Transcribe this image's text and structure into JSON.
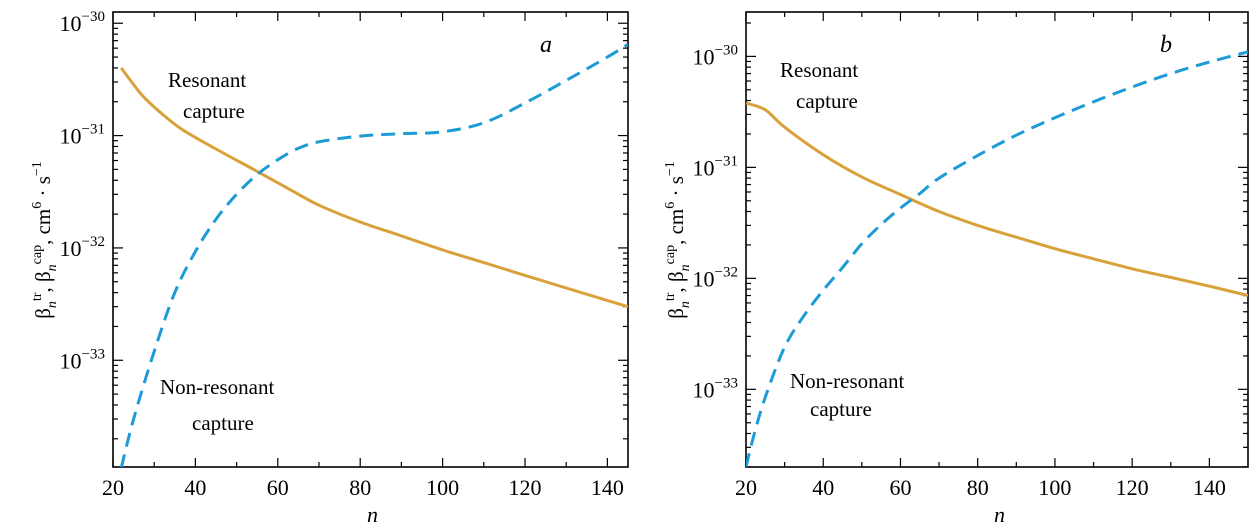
{
  "colors": {
    "resonant": "#D9A13A",
    "non_resonant": "#1C9BD6",
    "axes": "#000000"
  },
  "ylabel": {
    "beta": "β",
    "sup1": "tr",
    "sub": "n",
    "sup2": "cap",
    "unit_base": "cm",
    "unit_exp": "6",
    "unit_dot": "·",
    "unit_s": "s",
    "unit_s_exp": "−1"
  },
  "chart_data": [
    {
      "type": "line",
      "panel": "a",
      "xlabel": "n",
      "xlim": [
        20,
        145
      ],
      "ylim_log10": [
        -33.95,
        -29.9
      ],
      "yscale": "log",
      "x_ticks": [
        20,
        40,
        60,
        80,
        100,
        120,
        140
      ],
      "y_ticks": [
        {
          "base": "10",
          "exp": "−30",
          "log": -30
        },
        {
          "base": "10",
          "exp": "−31",
          "log": -31
        },
        {
          "base": "10",
          "exp": "−32",
          "log": -32
        },
        {
          "base": "10",
          "exp": "−33",
          "log": -33
        }
      ],
      "annotations": {
        "resonant": [
          "Resonant",
          "capture"
        ],
        "non_resonant": [
          "Non-resonant",
          "capture"
        ]
      },
      "series": [
        {
          "key": "resonant",
          "style": "solid",
          "x": [
            22,
            27,
            32,
            37,
            45,
            55,
            63,
            70,
            80,
            90,
            100,
            110,
            120,
            130,
            145
          ],
          "y": [
            4e-31,
            2.3e-31,
            1.55e-31,
            1.12e-31,
            7.6e-32,
            4.8e-32,
            3.3e-32,
            2.4e-32,
            1.7e-32,
            1.28e-32,
            9.6e-33,
            7.4e-33,
            5.7e-33,
            4.4e-33,
            3e-33
          ]
        },
        {
          "key": "non_resonant",
          "style": "dashed",
          "x": [
            22,
            25,
            30,
            35,
            40,
            45,
            50,
            55,
            60,
            65,
            70,
            80,
            90,
            100,
            110,
            120,
            130,
            140,
            145
          ],
          "y": [
            1.1e-34,
            3e-34,
            1.2e-33,
            4e-33,
            9.3e-33,
            1.8e-32,
            3e-32,
            4.5e-32,
            6.1e-32,
            7.7e-32,
            8.8e-32,
            9.9e-32,
            1.04e-31,
            1.08e-31,
            1.3e-31,
            1.95e-31,
            3.1e-31,
            5e-31,
            6.5e-31
          ]
        }
      ]
    },
    {
      "type": "line",
      "panel": "b",
      "xlabel": "n",
      "xlim": [
        20,
        150
      ],
      "ylim_log10": [
        -33.7,
        -29.6
      ],
      "yscale": "log",
      "x_ticks": [
        20,
        40,
        60,
        80,
        100,
        120,
        140
      ],
      "y_ticks": [
        {
          "base": "10",
          "exp": "−30",
          "log": -30
        },
        {
          "base": "10",
          "exp": "−31",
          "log": -31
        },
        {
          "base": "10",
          "exp": "−32",
          "log": -32
        },
        {
          "base": "10",
          "exp": "−33",
          "log": -33
        }
      ],
      "annotations": {
        "resonant": [
          "Resonant",
          "capture"
        ],
        "non_resonant": [
          "Non-resonant",
          "capture"
        ]
      },
      "series": [
        {
          "key": "resonant",
          "style": "solid",
          "x": [
            20,
            25,
            30,
            40,
            50,
            60,
            70,
            80,
            90,
            100,
            110,
            120,
            130,
            140,
            150
          ],
          "y": [
            3.8e-31,
            3.3e-31,
            2.3e-31,
            1.3e-31,
            8.2e-32,
            5.7e-32,
            4e-32,
            3e-32,
            2.35e-32,
            1.85e-32,
            1.5e-32,
            1.22e-32,
            1.02e-32,
            8.5e-33,
            7e-33
          ]
        },
        {
          "key": "non_resonant",
          "style": "dashed",
          "x": [
            20,
            22,
            25,
            30,
            35,
            40,
            45,
            50,
            55,
            60,
            65,
            70,
            80,
            90,
            100,
            110,
            120,
            130,
            140,
            150
          ],
          "y": [
            2e-34,
            3.8e-34,
            8.5e-34,
            2.4e-33,
            4.6e-33,
            7.8e-33,
            1.25e-32,
            2.05e-32,
            3.05e-32,
            4.3e-32,
            5.8e-32,
            8e-32,
            1.28e-31,
            1.95e-31,
            2.8e-31,
            3.9e-31,
            5.3e-31,
            7e-31,
            8.9e-31,
            1.1e-30
          ]
        }
      ]
    }
  ]
}
